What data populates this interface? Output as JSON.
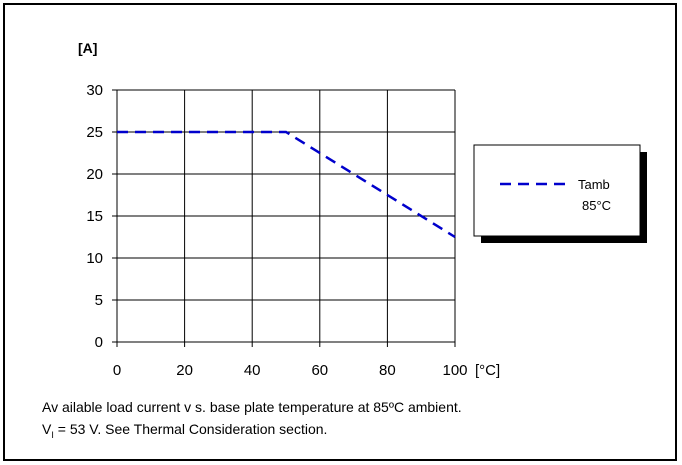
{
  "chart_data": {
    "type": "line",
    "title": "",
    "ylabel": "[A]",
    "xlabel": "[°C]",
    "xlim": [
      0,
      100
    ],
    "ylim": [
      0,
      30
    ],
    "x_ticks": [
      0,
      20,
      40,
      60,
      80,
      100
    ],
    "y_ticks": [
      0,
      5,
      10,
      15,
      20,
      25,
      30
    ],
    "grid": true,
    "legend_position": "right",
    "series": [
      {
        "name": "Tamb 85°C",
        "legend_lines": [
          "Tamb",
          "85°C"
        ],
        "color": "#0000cc",
        "line_style": "dashed",
        "x": [
          0,
          50,
          100
        ],
        "y": [
          25,
          25,
          12.5
        ]
      }
    ]
  },
  "caption": {
    "line1": "Av ailable load current v s. base plate temperature at 85ºC ambient.",
    "line2_var": "V",
    "line2_sub": "I",
    "line2_rest": " = 53 V. See Thermal Consideration section."
  }
}
